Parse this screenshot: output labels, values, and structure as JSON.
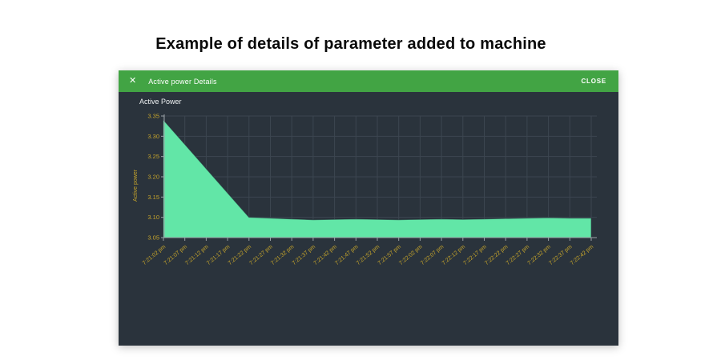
{
  "page": {
    "title": "Example of details of parameter added to machine",
    "background_color": "#ffffff"
  },
  "modal": {
    "header": {
      "title": "Active power Details",
      "close_icon": "✕",
      "close_button_label": "CLOSE",
      "bg_color": "#42A444"
    },
    "body_bg_color": "#2A333C"
  },
  "chart_data": {
    "type": "area",
    "title": "Active Power",
    "ylabel": "Active power",
    "xlabel": "",
    "ylim": [
      3.05,
      3.35
    ],
    "ytick_labels": [
      "3.35",
      "3.30",
      "3.25",
      "3.20",
      "3.15",
      "3.10",
      "3.05"
    ],
    "grid": true,
    "legend_shown": false,
    "area_color": "#62E6A7",
    "tick_label_color": "#C5A42B",
    "axis_color": "#9AA0A6",
    "grid_color": "#3C4650",
    "x": [
      "7:21:02 pm",
      "7:21:07 pm",
      "7:21:12 pm",
      "7:21:17 pm",
      "7:21:22 pm",
      "7:21:27 pm",
      "7:21:32 pm",
      "7:21:37 pm",
      "7:21:42 pm",
      "7:21:47 pm",
      "7:21:52 pm",
      "7:21:57 pm",
      "7:22:02 pm",
      "7:22:07 pm",
      "7:22:12 pm",
      "7:22:17 pm",
      "7:22:22 pm",
      "7:22:27 pm",
      "7:22:32 pm",
      "7:22:37 pm",
      "7:22:42 pm"
    ],
    "values": [
      3.34,
      3.28,
      3.22,
      3.16,
      3.1,
      3.098,
      3.096,
      3.094,
      3.095,
      3.096,
      3.095,
      3.094,
      3.095,
      3.096,
      3.095,
      3.096,
      3.097,
      3.098,
      3.099,
      3.098,
      3.098
    ]
  }
}
